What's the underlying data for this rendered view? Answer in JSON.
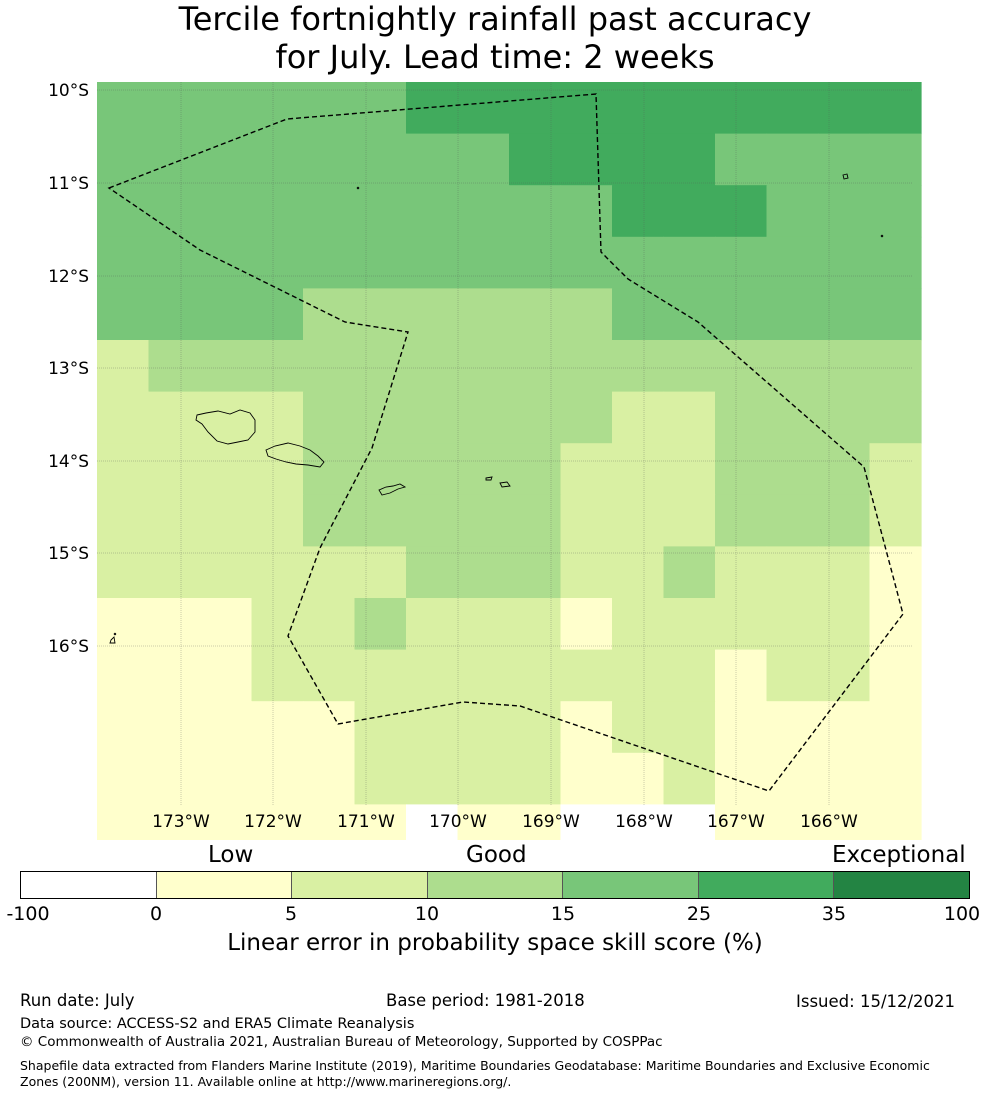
{
  "title": {
    "line1": "Tercile fortnightly rainfall past accuracy",
    "line2": "for July. Lead time: 2 weeks"
  },
  "map": {
    "region": "Samoa and American Samoa EEZ",
    "lat_labels": [
      "10°S",
      "11°S",
      "12°S",
      "13°S",
      "14°S",
      "15°S",
      "16°S"
    ],
    "lon_labels": [
      "173°W",
      "172°W",
      "171°W",
      "170°W",
      "169°W",
      "168°W",
      "167°W",
      "166°W"
    ],
    "colors": {
      "c0": "#ffffff",
      "c1": "#ffffcc",
      "c2": "#d9f0a3",
      "c3": "#addd8e",
      "c4": "#78c679",
      "c5": "#41ab5d",
      "c6": "#238443"
    },
    "grid": {
      "rows": [
        [
          4,
          4,
          4,
          4,
          4,
          4,
          5,
          5,
          5,
          5,
          5,
          5,
          5,
          5,
          5,
          5
        ],
        [
          4,
          4,
          4,
          4,
          4,
          4,
          4,
          4,
          5,
          5,
          5,
          5,
          4,
          4,
          4,
          4
        ],
        [
          4,
          4,
          4,
          4,
          4,
          4,
          4,
          4,
          4,
          4,
          5,
          5,
          5,
          4,
          4,
          4
        ],
        [
          4,
          4,
          4,
          4,
          4,
          4,
          4,
          4,
          4,
          4,
          4,
          4,
          4,
          4,
          4,
          4
        ],
        [
          4,
          4,
          4,
          4,
          3,
          3,
          3,
          3,
          3,
          3,
          4,
          4,
          4,
          4,
          4,
          4
        ],
        [
          2,
          3,
          3,
          3,
          3,
          3,
          3,
          3,
          3,
          3,
          3,
          3,
          3,
          3,
          3,
          3
        ],
        [
          2,
          2,
          2,
          2,
          3,
          3,
          3,
          3,
          3,
          3,
          2,
          2,
          3,
          3,
          3,
          3
        ],
        [
          2,
          2,
          2,
          2,
          3,
          3,
          3,
          3,
          3,
          2,
          2,
          2,
          3,
          3,
          3,
          2
        ],
        [
          2,
          2,
          2,
          2,
          3,
          3,
          3,
          3,
          3,
          2,
          2,
          2,
          3,
          3,
          3,
          2
        ],
        [
          2,
          2,
          2,
          2,
          2,
          2,
          3,
          3,
          3,
          2,
          2,
          3,
          2,
          2,
          2,
          1
        ],
        [
          1,
          1,
          1,
          2,
          2,
          3,
          2,
          2,
          2,
          1,
          2,
          2,
          2,
          2,
          2,
          1
        ],
        [
          1,
          1,
          1,
          2,
          2,
          2,
          2,
          2,
          2,
          2,
          2,
          2,
          1,
          2,
          2,
          1
        ],
        [
          1,
          1,
          1,
          1,
          1,
          2,
          2,
          2,
          2,
          1,
          2,
          2,
          1,
          1,
          1,
          1
        ],
        [
          1,
          1,
          1,
          1,
          1,
          2,
          2,
          2,
          2,
          1,
          1,
          2,
          1,
          1,
          1,
          1
        ],
        [
          1,
          1,
          1,
          1,
          1,
          1,
          0,
          1,
          1,
          0,
          0,
          0,
          1,
          1,
          1,
          1
        ]
      ]
    }
  },
  "legend": {
    "categories": [
      "Low",
      "Good",
      "Exceptional"
    ],
    "ticks": [
      "-100",
      "0",
      "5",
      "10",
      "15",
      "25",
      "35",
      "100"
    ],
    "label": "Linear error in probability space skill score (%)"
  },
  "footer": {
    "run_date": "Run date: July",
    "base_period": "Base period: 1981-2018",
    "issued": "Issued: 15/12/2021",
    "data_source": "Data source: ACCESS-S2 and ERA5 Climate Reanalysis",
    "copyright": "© Commonwealth of Australia 2021, Australian Bureau of Meteorology, Supported by COSPPac",
    "shapefile": "Shapefile data extracted from Flanders Marine Institute (2019), Maritime Boundaries Geodatabase: Maritime Boundaries and Exclusive Economic Zones (200NM), version 11. Available online at http://www.marineregions.org/."
  }
}
